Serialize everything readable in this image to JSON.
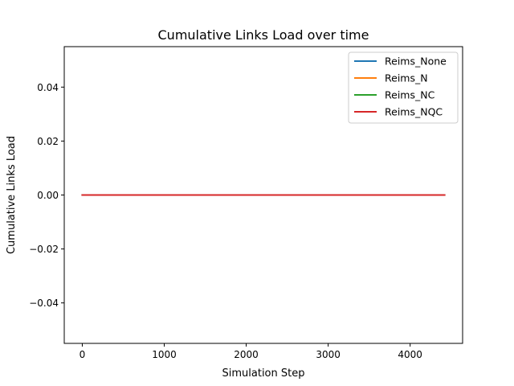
{
  "chart_data": {
    "type": "line",
    "title": "Cumulative Links Load over time",
    "xlabel": "Simulation Step",
    "ylabel": "Cumulative Links Load",
    "xlim": [
      -220,
      4640
    ],
    "ylim": [
      -0.055,
      0.055
    ],
    "x_ticks": [
      0,
      1000,
      2000,
      3000,
      4000
    ],
    "x_tick_labels": [
      "0",
      "1000",
      "2000",
      "3000",
      "4000"
    ],
    "y_ticks": [
      -0.04,
      -0.02,
      0.0,
      0.02,
      0.04
    ],
    "y_tick_labels": [
      "−0.04",
      "−0.02",
      "0.00",
      "0.02",
      "0.04"
    ],
    "grid": false,
    "legend_position": "top-right",
    "series": [
      {
        "name": "Reims_None",
        "color": "#1f77b4",
        "x": [
          0,
          4420
        ],
        "y": [
          0,
          0
        ]
      },
      {
        "name": "Reims_N",
        "color": "#ff7f0e",
        "x": [
          0,
          4420
        ],
        "y": [
          0,
          0
        ]
      },
      {
        "name": "Reims_NC",
        "color": "#2ca02c",
        "x": [
          0,
          4420
        ],
        "y": [
          0,
          0
        ]
      },
      {
        "name": "Reims_NQC",
        "color": "#d62728",
        "x": [
          0,
          4420
        ],
        "y": [
          0,
          0
        ]
      }
    ]
  }
}
